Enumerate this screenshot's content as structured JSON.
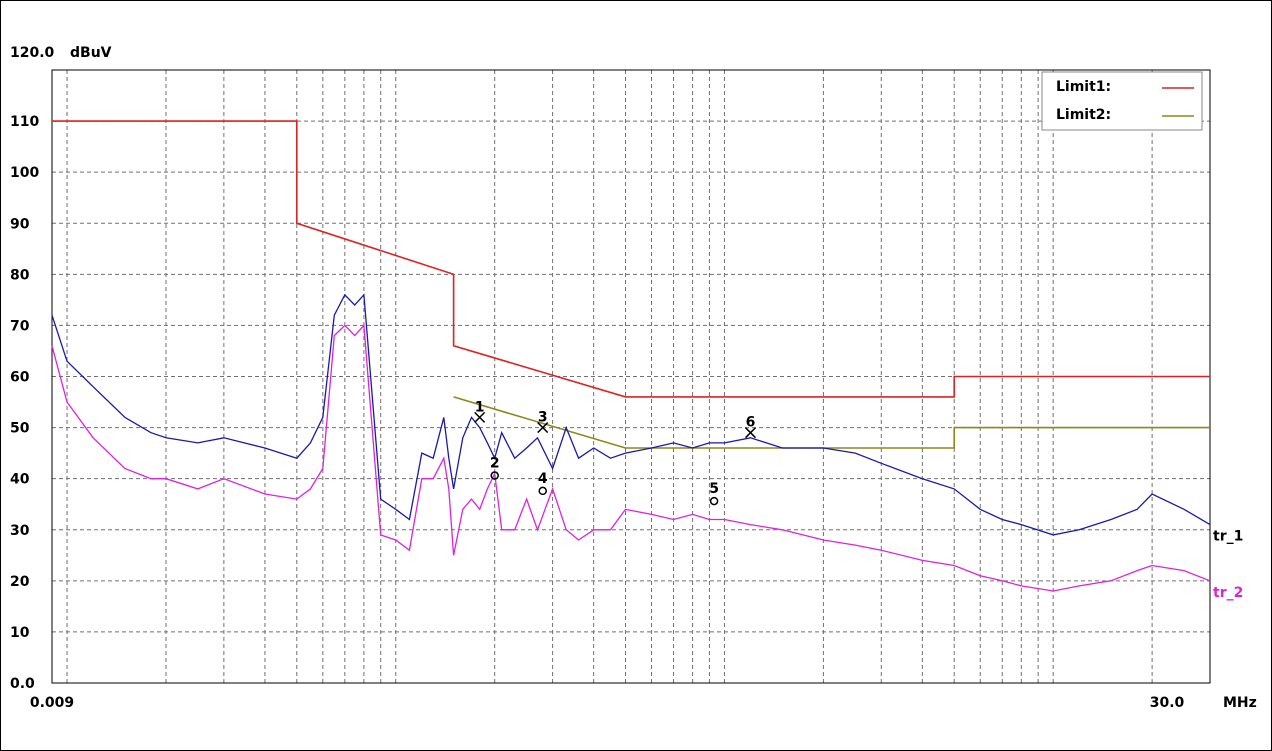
{
  "chart_data": {
    "type": "line",
    "ylabel": "dBuV",
    "xlabel": "MHz",
    "xscale": "log",
    "xlim": [
      0.009,
      30.0
    ],
    "ylim": [
      0,
      120
    ],
    "x_tick_labels": [
      "0.009",
      "30.0"
    ],
    "y_tick_labels": [
      "120.0",
      "110",
      "100",
      "90",
      "80",
      "70",
      "60",
      "50",
      "40",
      "30",
      "20",
      "10",
      "0.0"
    ],
    "grid": true,
    "legend": {
      "placement": "top-right",
      "entries": [
        {
          "label": "Limit1:",
          "color": "#dd2222"
        },
        {
          "label": "Limit2:",
          "color": "#8a8a1a"
        }
      ]
    },
    "series": [
      {
        "name": "Limit1",
        "color": "#dd2222",
        "x": [
          0.009,
          0.05,
          0.05,
          0.15,
          0.15,
          0.5,
          0.5,
          5.0,
          5.0,
          30.0
        ],
        "y": [
          110,
          110,
          90,
          80,
          66,
          56,
          56,
          56,
          60,
          60
        ]
      },
      {
        "name": "Limit2",
        "color": "#8a8a1a",
        "x": [
          0.15,
          0.5,
          0.5,
          5.0,
          5.0,
          30.0
        ],
        "y": [
          56,
          46,
          46,
          46,
          50,
          50
        ]
      },
      {
        "name": "tr_1",
        "color": "#1a1aaa",
        "x": [
          0.009,
          0.01,
          0.012,
          0.015,
          0.018,
          0.02,
          0.025,
          0.03,
          0.04,
          0.05,
          0.055,
          0.06,
          0.065,
          0.07,
          0.075,
          0.08,
          0.09,
          0.1,
          0.11,
          0.12,
          0.13,
          0.14,
          0.145,
          0.15,
          0.16,
          0.17,
          0.18,
          0.19,
          0.2,
          0.21,
          0.23,
          0.25,
          0.27,
          0.3,
          0.33,
          0.36,
          0.4,
          0.45,
          0.5,
          0.6,
          0.7,
          0.8,
          0.9,
          1.0,
          1.2,
          1.5,
          2.0,
          2.5,
          3.0,
          4.0,
          5.0,
          6.0,
          7.0,
          8.0,
          10.0,
          12.0,
          15.0,
          18.0,
          20.0,
          25.0,
          30.0
        ],
        "y": [
          72,
          63,
          58,
          52,
          49,
          48,
          47,
          48,
          46,
          44,
          47,
          52,
          72,
          76,
          74,
          76,
          36,
          34,
          32,
          45,
          44,
          52,
          44,
          38,
          48,
          52,
          50,
          47,
          44,
          49,
          44,
          46,
          48,
          42,
          50,
          44,
          46,
          44,
          45,
          46,
          47,
          46,
          47,
          47,
          48,
          46,
          46,
          45,
          43,
          40,
          38,
          34,
          32,
          31,
          29,
          30,
          32,
          34,
          37,
          34,
          31
        ]
      },
      {
        "name": "tr_2",
        "color": "#dd22dd",
        "x": [
          0.009,
          0.01,
          0.012,
          0.015,
          0.018,
          0.02,
          0.025,
          0.03,
          0.04,
          0.05,
          0.055,
          0.06,
          0.065,
          0.07,
          0.075,
          0.08,
          0.09,
          0.1,
          0.11,
          0.12,
          0.13,
          0.14,
          0.145,
          0.15,
          0.16,
          0.17,
          0.18,
          0.19,
          0.2,
          0.21,
          0.23,
          0.25,
          0.27,
          0.3,
          0.33,
          0.36,
          0.4,
          0.45,
          0.5,
          0.6,
          0.7,
          0.8,
          0.9,
          1.0,
          1.2,
          1.5,
          2.0,
          2.5,
          3.0,
          4.0,
          5.0,
          6.0,
          7.0,
          8.0,
          10.0,
          12.0,
          15.0,
          18.0,
          20.0,
          25.0,
          30.0
        ],
        "y": [
          66,
          55,
          48,
          42,
          40,
          40,
          38,
          40,
          37,
          36,
          38,
          42,
          68,
          70,
          68,
          70,
          29,
          28,
          26,
          40,
          40,
          44,
          38,
          25,
          34,
          36,
          34,
          38,
          41,
          30,
          30,
          36,
          30,
          38,
          30,
          28,
          30,
          30,
          34,
          33,
          32,
          33,
          32,
          32,
          31,
          30,
          28,
          27,
          26,
          24,
          23,
          21,
          20,
          19,
          18,
          19,
          20,
          22,
          23,
          22,
          20
        ]
      }
    ],
    "trace_labels": [
      {
        "text": "tr_1",
        "color": "#000000"
      },
      {
        "text": "tr_2",
        "color": "#dd22dd"
      }
    ],
    "markers": [
      {
        "label": "1",
        "symbol": "X",
        "x": 0.18,
        "y": 52
      },
      {
        "label": "2",
        "symbol": "o",
        "x": 0.2,
        "y": 41
      },
      {
        "label": "3",
        "symbol": "X",
        "x": 0.28,
        "y": 50
      },
      {
        "label": "4",
        "symbol": "o",
        "x": 0.28,
        "y": 38
      },
      {
        "label": "5",
        "symbol": "o",
        "x": 0.93,
        "y": 36
      },
      {
        "label": "6",
        "symbol": "X",
        "x": 1.2,
        "y": 49
      }
    ]
  }
}
